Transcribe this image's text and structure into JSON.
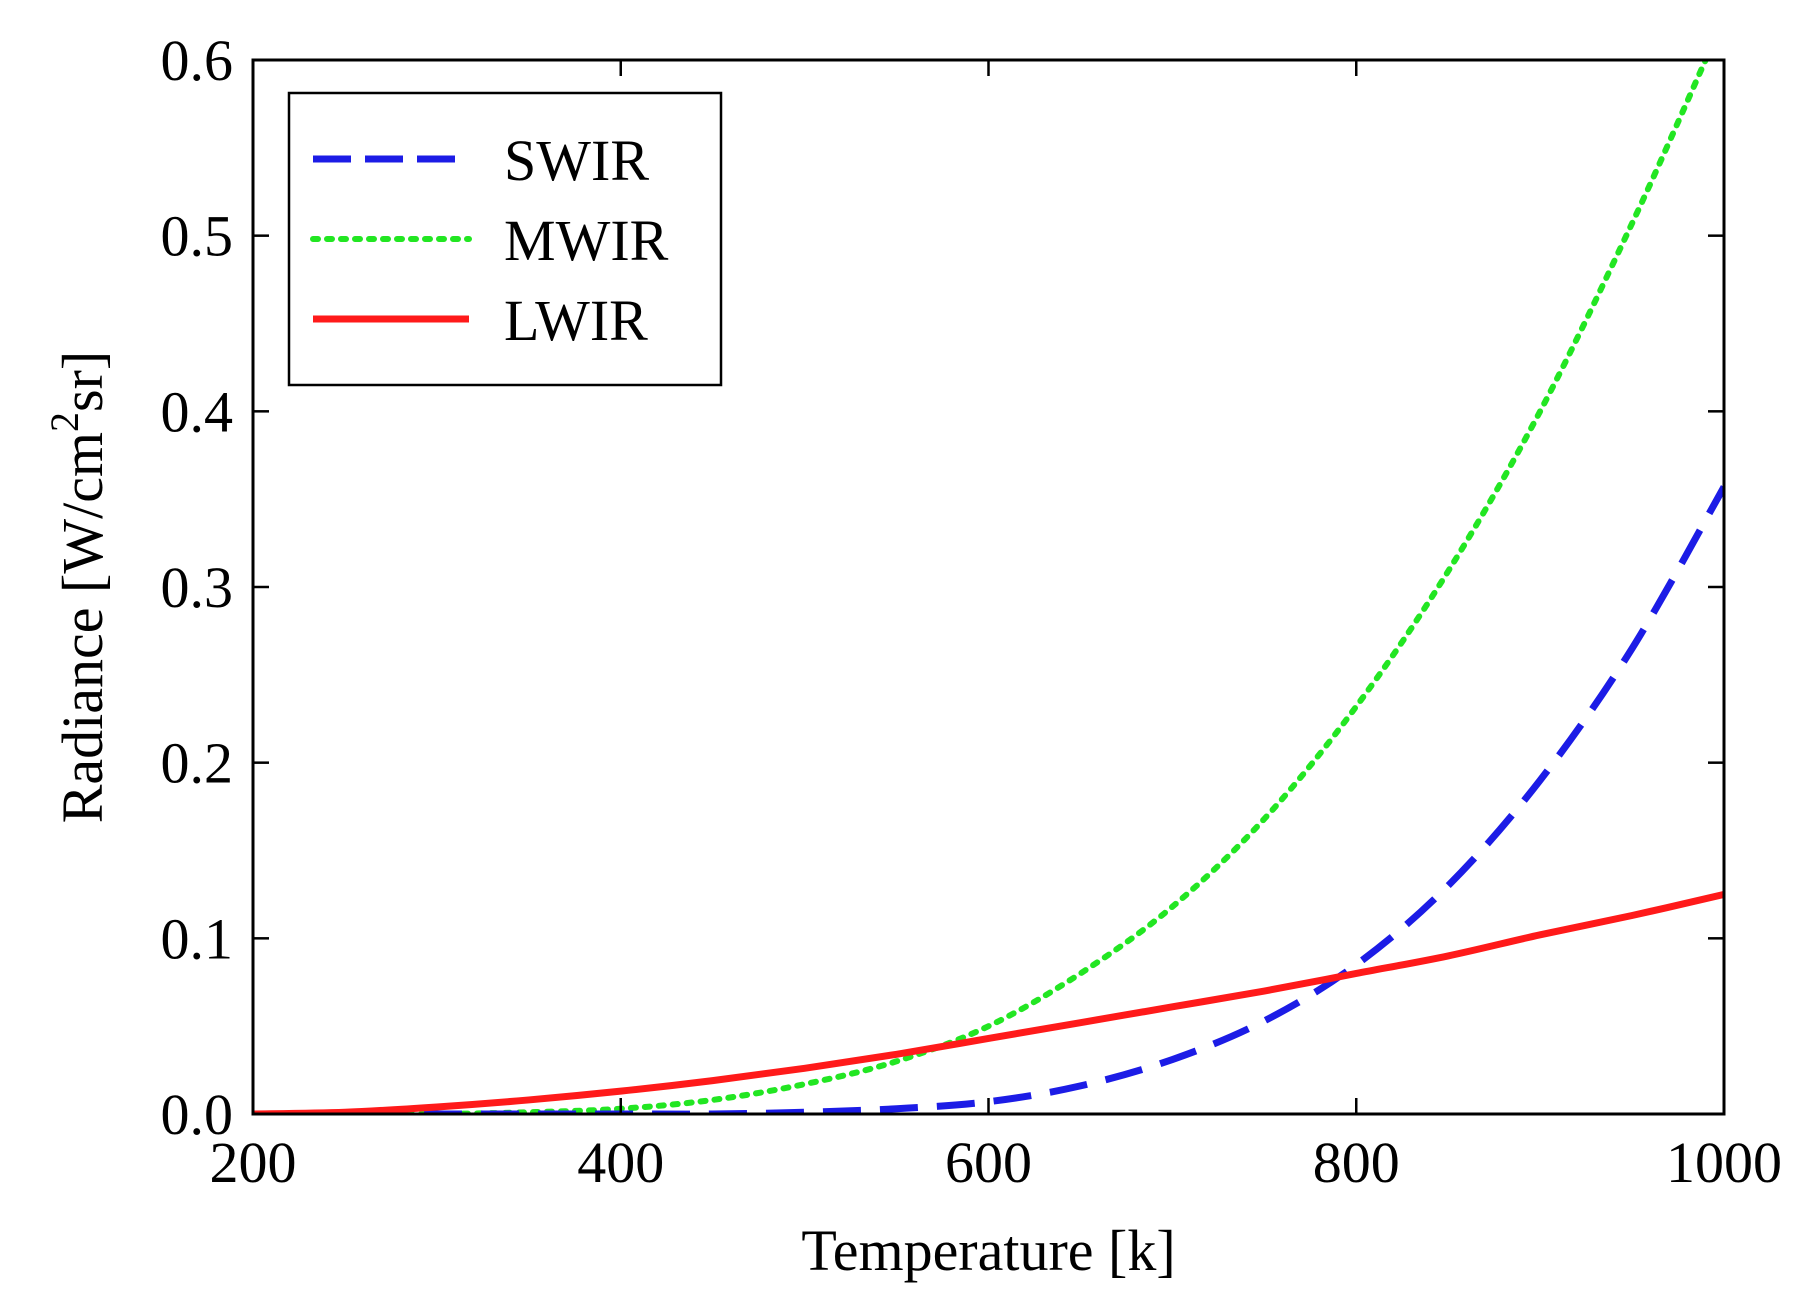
{
  "chart_data": {
    "type": "line",
    "title": "",
    "xlabel": "Temperature [k]",
    "ylabel_parts": [
      "Radiance [W/cm",
      "2",
      "sr]"
    ],
    "xlim": [
      200,
      1000
    ],
    "ylim": [
      0,
      0.6
    ],
    "x_ticks": [
      200,
      400,
      600,
      800,
      1000
    ],
    "x_tick_labels": [
      "200",
      "400",
      "600",
      "800",
      "1000"
    ],
    "y_ticks": [
      0,
      0.1,
      0.2,
      0.3,
      0.4,
      0.5,
      0.6
    ],
    "y_tick_labels": [
      "0.0",
      "0.1",
      "0.2",
      "0.3",
      "0.4",
      "0.5",
      "0.6"
    ],
    "grid": false,
    "legend_position": "top-left",
    "series": [
      {
        "name": "SWIR",
        "style": "dashed",
        "color": "#1c1ce6",
        "x": [
          200,
          300,
          400,
          450,
          500,
          550,
          600,
          650,
          700,
          750,
          800,
          850,
          900,
          950,
          1000
        ],
        "values": [
          0,
          0,
          0,
          0,
          0.001,
          0.003,
          0.007,
          0.016,
          0.031,
          0.053,
          0.085,
          0.13,
          0.19,
          0.265,
          0.357
        ]
      },
      {
        "name": "MWIR",
        "style": "dotted",
        "color": "#22e622",
        "x": [
          200,
          250,
          300,
          350,
          400,
          450,
          500,
          550,
          600,
          650,
          700,
          750,
          800,
          850,
          900,
          950,
          990
        ],
        "values": [
          0,
          0,
          0,
          0.001,
          0.003,
          0.008,
          0.017,
          0.03,
          0.05,
          0.08,
          0.118,
          0.168,
          0.232,
          0.309,
          0.4,
          0.507,
          0.6
        ]
      },
      {
        "name": "LWIR",
        "style": "solid",
        "color": "#ff1a1a",
        "x": [
          200,
          250,
          300,
          350,
          400,
          450,
          500,
          550,
          600,
          650,
          700,
          750,
          800,
          850,
          900,
          950,
          1000
        ],
        "values": [
          0,
          0.001,
          0.004,
          0.008,
          0.013,
          0.019,
          0.026,
          0.034,
          0.043,
          0.052,
          0.061,
          0.07,
          0.08,
          0.09,
          0.102,
          0.113,
          0.125
        ]
      }
    ]
  }
}
